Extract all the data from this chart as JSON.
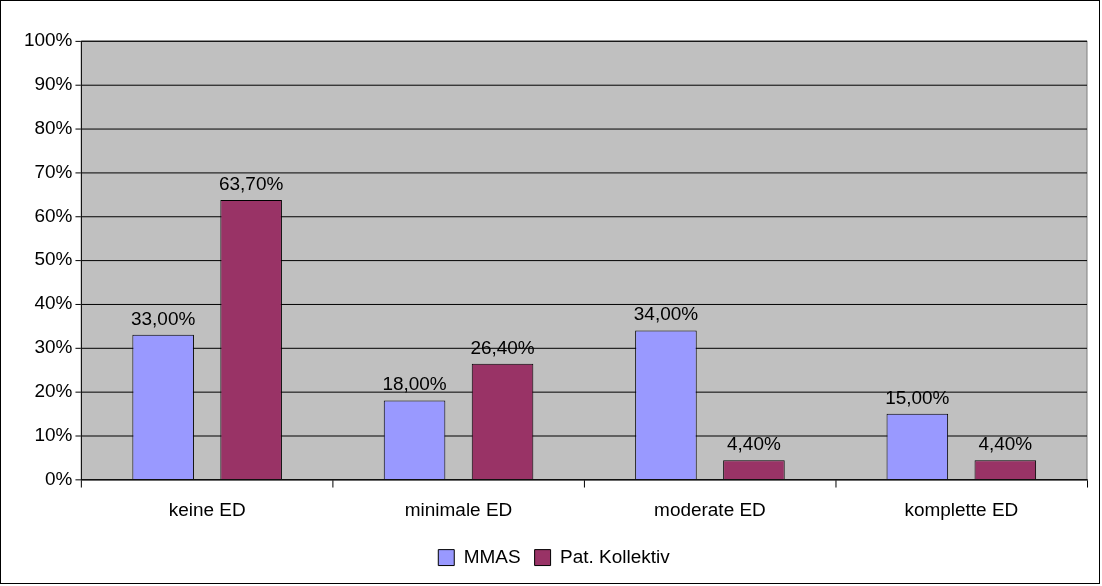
{
  "chart_data": {
    "type": "bar",
    "categories": [
      "keine ED",
      "minimale ED",
      "moderate ED",
      "komplette ED"
    ],
    "series": [
      {
        "name": "MMAS",
        "color": "#9999ff",
        "values": [
          33,
          18,
          34,
          15
        ],
        "value_labels": [
          "33,00%",
          "18,00%",
          "34,00%",
          "15,00%"
        ]
      },
      {
        "name": "Pat. Kollektiv",
        "color": "#993366",
        "values": [
          63.7,
          26.4,
          4.4,
          4.4
        ],
        "value_labels": [
          "63,70%",
          "26,40%",
          "4,40%",
          "4,40%"
        ]
      }
    ],
    "ylim": [
      0,
      100
    ],
    "yticks": [
      {
        "value": 0,
        "label": "0%"
      },
      {
        "value": 10,
        "label": "10%"
      },
      {
        "value": 20,
        "label": "20%"
      },
      {
        "value": 30,
        "label": "30%"
      },
      {
        "value": 40,
        "label": "40%"
      },
      {
        "value": 50,
        "label": "50%"
      },
      {
        "value": 60,
        "label": "60%"
      },
      {
        "value": 70,
        "label": "70%"
      },
      {
        "value": 80,
        "label": "80%"
      },
      {
        "value": 90,
        "label": "90%"
      },
      {
        "value": 100,
        "label": "100%"
      }
    ],
    "grid": "y",
    "legend": "bottom"
  }
}
